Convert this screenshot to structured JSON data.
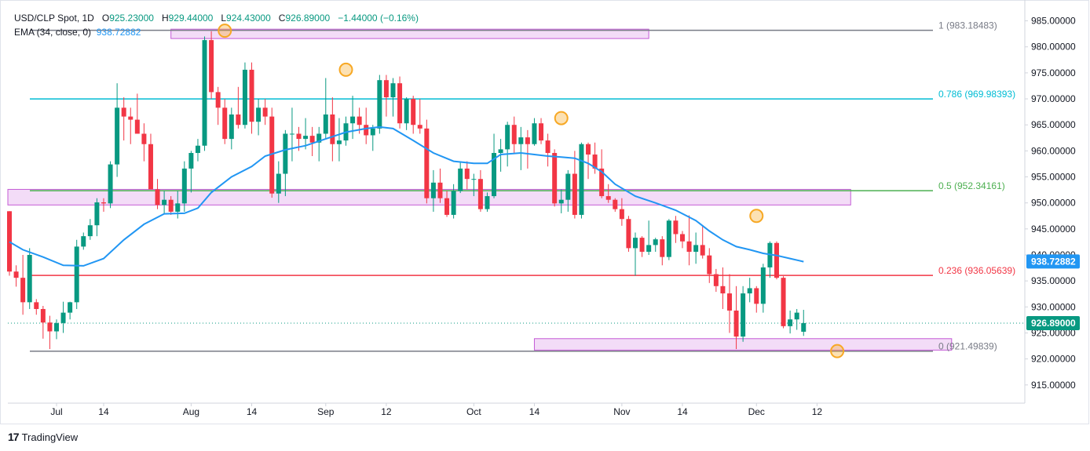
{
  "legend": {
    "symbol": "USD/CLP Spot, 1D",
    "open_label": "O",
    "open": "925.23000",
    "high_label": "H",
    "high": "929.44000",
    "low_label": "L",
    "low": "924.43000",
    "close_label": "C",
    "close": "926.89000",
    "change": "−1.44000 (−0.16%)",
    "ema_label": "EMA (34, close, 0)",
    "ema_value": "938.72882"
  },
  "branding": {
    "name": "TradingView",
    "logo": "17"
  },
  "colors": {
    "up": "#089981",
    "down": "#f23645",
    "ema": "#2196f3",
    "zone_fill": "#f3dcf7",
    "zone_stroke": "#c45bd6",
    "marker": "#f7a824"
  },
  "chart_data": {
    "type": "candlestick",
    "title": "USD/CLP Spot, 1D",
    "ylim": [
      911.5,
      987.5
    ],
    "y_ticks": [
      915,
      920,
      925,
      930,
      935,
      940,
      945,
      950,
      955,
      960,
      965,
      970,
      975,
      980,
      985
    ],
    "y_tick_labels": [
      "915.00000",
      "920.00000",
      "925.00000",
      "930.00000",
      "935.00000",
      "940.00000",
      "945.00000",
      "950.00000",
      "955.00000",
      "960.00000",
      "965.00000",
      "970.00000",
      "975.00000",
      "980.00000",
      "985.00000"
    ],
    "x_ticks": [
      {
        "label": "Jul",
        "index": 7
      },
      {
        "label": "14",
        "index": 14
      },
      {
        "label": "Aug",
        "index": 27
      },
      {
        "label": "14",
        "index": 36
      },
      {
        "label": "Sep",
        "index": 47
      },
      {
        "label": "12",
        "index": 56
      },
      {
        "label": "Oct",
        "index": 69
      },
      {
        "label": "14",
        "index": 78
      },
      {
        "label": "Nov",
        "index": 91
      },
      {
        "label": "14",
        "index": 100
      },
      {
        "label": "Dec",
        "index": 111
      },
      {
        "label": "12",
        "index": 120
      }
    ],
    "total_slots": 128,
    "candles": [
      [
        0,
        948.4,
        948.4,
        936.0,
        936.8
      ],
      [
        1,
        936.8,
        938.0,
        933.9,
        935.6
      ],
      [
        2,
        935.6,
        940.0,
        928.5,
        930.9
      ],
      [
        3,
        930.9,
        941.3,
        929.6,
        940.0
      ],
      [
        4,
        930.9,
        931.5,
        928.5,
        929.6
      ],
      [
        5,
        929.6,
        930.2,
        923.9,
        927.0
      ],
      [
        6,
        927.0,
        928.3,
        921.9,
        925.3
      ],
      [
        7,
        925.3,
        927.6,
        923.8,
        926.9
      ],
      [
        8,
        926.9,
        931.0,
        925.0,
        928.9
      ],
      [
        9,
        928.9,
        931.0,
        927.6,
        930.9
      ],
      [
        10,
        930.9,
        942.9,
        929.6,
        941.6
      ],
      [
        11,
        941.6,
        944.3,
        941.0,
        943.6
      ],
      [
        12,
        943.6,
        946.9,
        942.9,
        945.7
      ],
      [
        13,
        945.7,
        950.9,
        943.6,
        950.1
      ],
      [
        14,
        950.1,
        950.9,
        948.3,
        949.9
      ],
      [
        15,
        949.9,
        958.0,
        949.0,
        957.4
      ],
      [
        16,
        957.4,
        973.0,
        955.0,
        968.3
      ],
      [
        17,
        968.3,
        970.3,
        962.0,
        966.6
      ],
      [
        18,
        966.6,
        968.3,
        961.3,
        966.0
      ],
      [
        19,
        966.0,
        971.0,
        963.3,
        963.3
      ],
      [
        20,
        963.3,
        965.3,
        958.0,
        961.3
      ],
      [
        21,
        961.3,
        963.3,
        952.6,
        952.6
      ],
      [
        22,
        952.6,
        954.6,
        948.8,
        949.6
      ],
      [
        23,
        949.6,
        952.3,
        948.0,
        950.6
      ],
      [
        24,
        950.6,
        951.3,
        947.7,
        948.3
      ],
      [
        25,
        948.3,
        952.3,
        947.0,
        949.9
      ],
      [
        26,
        949.9,
        958.0,
        948.3,
        956.6
      ],
      [
        27,
        956.6,
        960.0,
        952.0,
        959.6
      ],
      [
        28,
        959.6,
        962.3,
        958.0,
        961.0
      ],
      [
        29,
        961.0,
        982.0,
        960.0,
        981.3
      ],
      [
        30,
        981.3,
        983.0,
        970.0,
        971.3
      ],
      [
        31,
        971.3,
        972.3,
        965.0,
        968.3
      ],
      [
        32,
        968.3,
        970.0,
        961.3,
        962.3
      ],
      [
        33,
        962.3,
        968.3,
        960.3,
        967.0
      ],
      [
        34,
        967.0,
        972.3,
        964.3,
        965.0
      ],
      [
        35,
        965.0,
        977.0,
        964.3,
        975.6
      ],
      [
        36,
        975.6,
        977.0,
        963.3,
        965.6
      ],
      [
        37,
        965.6,
        970.0,
        963.0,
        968.3
      ],
      [
        38,
        968.3,
        970.0,
        965.0,
        966.6
      ],
      [
        39,
        966.6,
        968.3,
        951.0,
        951.8
      ],
      [
        40,
        951.8,
        958.0,
        950.0,
        955.6
      ],
      [
        41,
        955.6,
        964.0,
        951.3,
        963.3
      ],
      [
        42,
        963.3,
        968.3,
        958.0,
        963.3
      ],
      [
        43,
        963.3,
        964.6,
        960.0,
        962.3
      ],
      [
        44,
        962.3,
        966.3,
        960.3,
        962.9
      ],
      [
        45,
        962.9,
        964.6,
        959.0,
        961.6
      ],
      [
        46,
        961.6,
        964.6,
        958.0,
        963.3
      ],
      [
        47,
        963.3,
        974.0,
        962.3,
        967.0
      ],
      [
        48,
        967.0,
        970.3,
        958.0,
        961.3
      ],
      [
        49,
        961.3,
        966.3,
        958.0,
        962.0
      ],
      [
        50,
        962.0,
        966.6,
        961.0,
        965.3
      ],
      [
        51,
        965.3,
        970.6,
        962.3,
        966.6
      ],
      [
        52,
        966.6,
        968.3,
        963.3,
        965.0
      ],
      [
        53,
        965.0,
        968.3,
        961.3,
        963.0
      ],
      [
        54,
        963.0,
        965.0,
        960.0,
        964.3
      ],
      [
        55,
        964.3,
        974.6,
        963.3,
        973.6
      ],
      [
        56,
        973.6,
        974.6,
        966.6,
        970.3
      ],
      [
        57,
        970.3,
        974.0,
        966.6,
        973.0
      ],
      [
        58,
        973.0,
        974.3,
        964.3,
        965.3
      ],
      [
        59,
        965.3,
        970.3,
        964.0,
        970.0
      ],
      [
        60,
        970.0,
        970.6,
        963.3,
        965.0
      ],
      [
        61,
        965.0,
        970.0,
        963.3,
        964.3
      ],
      [
        62,
        964.3,
        966.0,
        949.9,
        950.9
      ],
      [
        63,
        950.9,
        956.3,
        948.3,
        953.9
      ],
      [
        64,
        953.9,
        956.6,
        950.0,
        950.9
      ],
      [
        65,
        950.9,
        952.3,
        947.3,
        947.7
      ],
      [
        66,
        947.7,
        953.6,
        947.0,
        952.3
      ],
      [
        67,
        952.3,
        958.0,
        951.9,
        956.6
      ],
      [
        68,
        956.6,
        958.0,
        952.6,
        954.6
      ],
      [
        69,
        954.6,
        955.6,
        951.3,
        954.6
      ],
      [
        70,
        954.6,
        956.3,
        948.3,
        948.8
      ],
      [
        71,
        948.8,
        952.0,
        948.3,
        951.3
      ],
      [
        72,
        951.3,
        963.3,
        950.9,
        959.6
      ],
      [
        73,
        959.6,
        962.3,
        956.0,
        960.3
      ],
      [
        74,
        960.3,
        965.6,
        957.0,
        965.0
      ],
      [
        75,
        965.0,
        966.6,
        959.6,
        961.3
      ],
      [
        76,
        961.3,
        964.6,
        956.3,
        962.6
      ],
      [
        77,
        962.6,
        964.0,
        956.6,
        961.3
      ],
      [
        78,
        961.3,
        966.3,
        961.0,
        965.3
      ],
      [
        79,
        965.3,
        966.3,
        961.3,
        962.0
      ],
      [
        80,
        962.0,
        963.3,
        957.0,
        959.6
      ],
      [
        81,
        959.6,
        960.3,
        949.3,
        949.9
      ],
      [
        82,
        949.9,
        952.6,
        948.0,
        950.6
      ],
      [
        83,
        950.6,
        956.3,
        948.3,
        955.6
      ],
      [
        84,
        955.6,
        960.0,
        947.0,
        947.7
      ],
      [
        85,
        947.7,
        961.6,
        947.0,
        961.3
      ],
      [
        86,
        961.3,
        961.6,
        954.6,
        959.3
      ],
      [
        87,
        959.3,
        961.6,
        955.6,
        956.6
      ],
      [
        88,
        956.6,
        960.3,
        950.9,
        951.3
      ],
      [
        89,
        951.3,
        953.6,
        950.0,
        950.6
      ],
      [
        90,
        950.6,
        950.9,
        948.3,
        948.8
      ],
      [
        91,
        948.8,
        950.9,
        945.6,
        946.9
      ],
      [
        92,
        946.9,
        947.5,
        940.6,
        941.3
      ],
      [
        93,
        941.3,
        944.3,
        936.0,
        943.3
      ],
      [
        94,
        943.3,
        943.6,
        939.6,
        940.6
      ],
      [
        95,
        940.6,
        946.6,
        940.0,
        941.9
      ],
      [
        96,
        941.9,
        943.3,
        940.6,
        943.0
      ],
      [
        97,
        943.0,
        943.6,
        938.0,
        939.6
      ],
      [
        98,
        939.6,
        946.9,
        939.0,
        946.6
      ],
      [
        99,
        946.6,
        947.5,
        942.3,
        944.0
      ],
      [
        100,
        944.0,
        944.6,
        941.3,
        942.6
      ],
      [
        101,
        942.6,
        947.6,
        938.0,
        940.6
      ],
      [
        102,
        940.6,
        944.3,
        938.3,
        941.9
      ],
      [
        103,
        941.9,
        945.6,
        939.3,
        939.9
      ],
      [
        104,
        939.9,
        941.3,
        934.6,
        936.3
      ],
      [
        105,
        936.3,
        937.3,
        932.9,
        934.0
      ],
      [
        106,
        934.0,
        937.6,
        929.6,
        932.6
      ],
      [
        107,
        932.6,
        936.3,
        925.0,
        929.3
      ],
      [
        108,
        929.3,
        934.0,
        921.9,
        924.3
      ],
      [
        109,
        924.3,
        934.0,
        923.3,
        932.6
      ],
      [
        110,
        932.6,
        935.6,
        930.9,
        933.6
      ],
      [
        111,
        933.6,
        934.0,
        928.9,
        930.6
      ],
      [
        112,
        930.6,
        938.3,
        928.9,
        937.6
      ],
      [
        113,
        937.6,
        942.6,
        935.6,
        942.3
      ],
      [
        114,
        942.3,
        942.6,
        935.3,
        935.6
      ],
      [
        115,
        935.6,
        935.9,
        925.9,
        926.3
      ],
      [
        116,
        926.3,
        929.3,
        924.9,
        927.6
      ],
      [
        117,
        927.6,
        929.6,
        925.6,
        928.9
      ],
      [
        118,
        925.23,
        929.44,
        924.43,
        926.89
      ]
    ],
    "ema_34": [
      [
        0,
        942.5
      ],
      [
        2,
        941.0
      ],
      [
        5,
        939.6
      ],
      [
        8,
        938.0
      ],
      [
        11,
        937.9
      ],
      [
        14,
        939.3
      ],
      [
        17,
        942.9
      ],
      [
        20,
        945.9
      ],
      [
        23,
        947.9
      ],
      [
        26,
        948.0
      ],
      [
        28,
        949.0
      ],
      [
        30,
        952.0
      ],
      [
        33,
        955.0
      ],
      [
        36,
        957.0
      ],
      [
        38,
        959.0
      ],
      [
        41,
        960.2
      ],
      [
        44,
        961.0
      ],
      [
        47,
        962.3
      ],
      [
        50,
        963.6
      ],
      [
        53,
        964.3
      ],
      [
        55,
        964.6
      ],
      [
        57,
        964.3
      ],
      [
        60,
        962.0
      ],
      [
        63,
        959.6
      ],
      [
        66,
        958.0
      ],
      [
        69,
        957.6
      ],
      [
        71,
        957.6
      ],
      [
        73,
        959.3
      ],
      [
        76,
        959.6
      ],
      [
        78,
        959.3
      ],
      [
        80,
        959.0
      ],
      [
        82,
        958.8
      ],
      [
        84,
        958.6
      ],
      [
        86,
        957.6
      ],
      [
        88,
        956.0
      ],
      [
        90,
        953.6
      ],
      [
        93,
        951.3
      ],
      [
        96,
        950.0
      ],
      [
        99,
        948.6
      ],
      [
        102,
        946.6
      ],
      [
        104,
        944.6
      ],
      [
        106,
        942.9
      ],
      [
        108,
        941.6
      ],
      [
        110,
        941.0
      ],
      [
        112,
        940.3
      ],
      [
        114,
        939.9
      ],
      [
        116,
        939.3
      ],
      [
        118,
        938.7
      ]
    ],
    "fibonacci": [
      {
        "level": "1",
        "value": 983.18483,
        "label": "1 (983.18483)",
        "color": "#787b86"
      },
      {
        "level": "0.786",
        "value": 969.98393,
        "label": "0.786 (969.98393)",
        "color": "#00bcd4"
      },
      {
        "level": "0.5",
        "value": 952.34161,
        "label": "0.5 (952.34161)",
        "color": "#4caf50"
      },
      {
        "level": "0.236",
        "value": 936.05639,
        "label": "0.236 (936.05639)",
        "color": "#f23645"
      },
      {
        "level": "0",
        "value": 921.49839,
        "label": "0 (921.49839)",
        "color": "#787b86"
      }
    ],
    "zones": [
      {
        "name": "resistance-zone-top",
        "x_start": 24,
        "x_end": 95,
        "y_low": 981.6,
        "y_high": 983.4
      },
      {
        "name": "support-resistance-zone-mid",
        "x_start": -3,
        "x_end": 125,
        "y_low": 949.6,
        "y_high": 952.6
      },
      {
        "name": "support-zone-bottom",
        "x_start": 78,
        "x_end": 140,
        "y_low": 921.7,
        "y_high": 923.9
      }
    ],
    "markers": [
      {
        "index": 32,
        "value": 983.1
      },
      {
        "index": 50,
        "value": 975.6
      },
      {
        "index": 82,
        "value": 966.3
      },
      {
        "index": 111,
        "value": 947.5
      },
      {
        "index": 123,
        "value": 921.5
      }
    ],
    "current_price": {
      "value": 926.89,
      "label": "926.89000"
    },
    "ema_price_tag": {
      "value": 938.72882,
      "label": "938.72882"
    }
  }
}
